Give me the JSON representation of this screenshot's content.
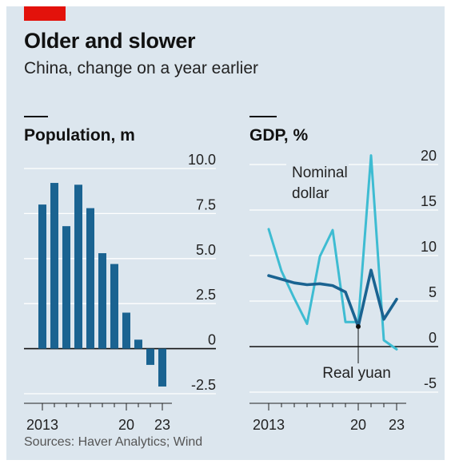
{
  "header": {
    "title": "Older and slower",
    "subtitle": "China, change on a year earlier"
  },
  "footer": {
    "source": "Sources: Haver Analytics; Wind"
  },
  "colors": {
    "background": "#dce6ee",
    "brand_red": "#e3120b",
    "dark_blue": "#1a6391",
    "light_cyan": "#3ebcd2",
    "grid": "#ffffff",
    "zero_line": "#111111"
  },
  "chart_data": [
    {
      "type": "bar",
      "title": "Population, m",
      "x": [
        2013,
        2014,
        2015,
        2016,
        2017,
        2018,
        2019,
        2020,
        2021,
        2022,
        2023
      ],
      "x_tick_labels": [
        "2013",
        "20",
        "23"
      ],
      "x_tick_label_years": [
        2013,
        2020,
        2023
      ],
      "values": [
        8.0,
        9.2,
        6.8,
        9.1,
        7.8,
        5.3,
        4.7,
        2.0,
        0.5,
        -0.9,
        -2.1
      ],
      "ylim": [
        -2.5,
        10.0
      ],
      "yticks": [
        "10.0",
        "7.5",
        "5.0",
        "2.5",
        "0",
        "-2.5"
      ],
      "ytick_values": [
        10.0,
        7.5,
        5.0,
        2.5,
        0,
        -2.5
      ],
      "grid": true
    },
    {
      "type": "line",
      "title": "GDP, %",
      "x": [
        2013,
        2014,
        2015,
        2016,
        2017,
        2018,
        2019,
        2020,
        2021,
        2022,
        2023
      ],
      "x_tick_labels": [
        "2013",
        "20",
        "23"
      ],
      "x_tick_label_years": [
        2013,
        2020,
        2023
      ],
      "series": [
        {
          "name": "Nominal dollar",
          "annotation_lines": [
            "Nominal",
            "dollar"
          ],
          "color": "#3ebcd2",
          "values": [
            12.9,
            8.3,
            5.3,
            2.5,
            9.9,
            12.8,
            2.7,
            2.7,
            21.0,
            0.7,
            -0.3
          ]
        },
        {
          "name": "Real yuan",
          "annotation_lines": [
            "Real yuan"
          ],
          "color": "#1a6391",
          "values": [
            7.8,
            7.4,
            7.0,
            6.8,
            6.9,
            6.7,
            6.0,
            2.2,
            8.4,
            3.0,
            5.2
          ]
        }
      ],
      "ylim": [
        -5,
        20
      ],
      "yticks": [
        "20",
        "15",
        "10",
        "5",
        "0",
        "-5"
      ],
      "ytick_values": [
        20,
        15,
        10,
        5,
        0,
        -5
      ],
      "grid": true
    }
  ]
}
